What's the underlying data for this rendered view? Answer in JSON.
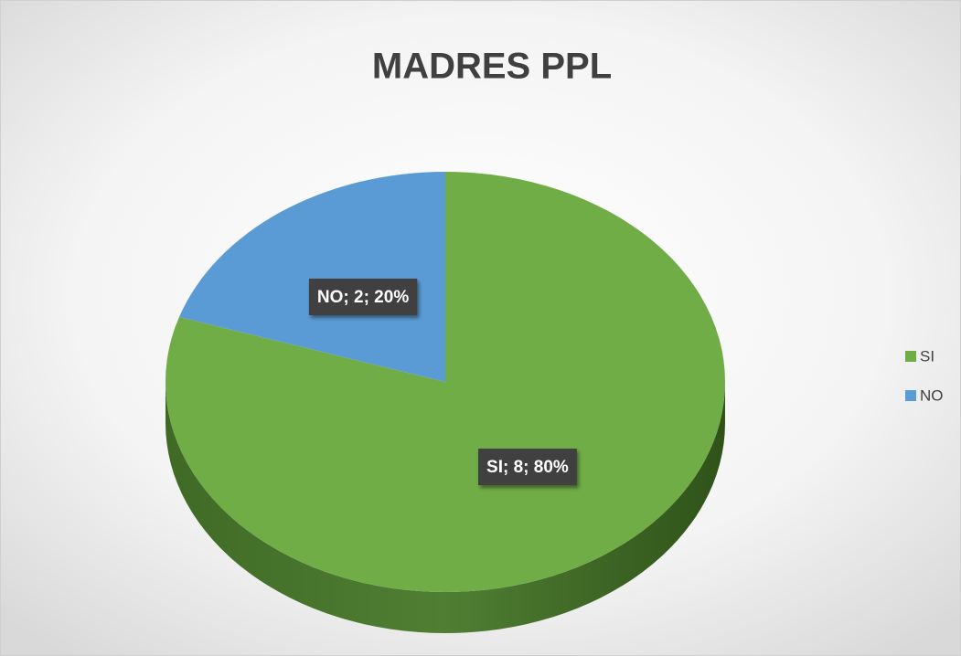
{
  "chart_data": {
    "type": "pie",
    "title": "MADRES PPL",
    "categories": [
      "SI",
      "NO"
    ],
    "values": [
      8,
      2
    ],
    "value_labels": [
      "SI; 8; 80%",
      "NO; 2; 20%"
    ],
    "colors": [
      "#70ad47",
      "#5b9bd5"
    ],
    "legend": "right"
  }
}
